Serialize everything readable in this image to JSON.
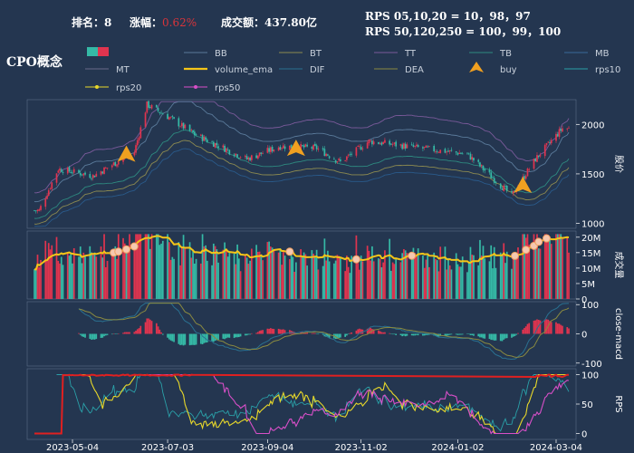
{
  "header": {
    "rank_label": "排名：",
    "rank_value": "8",
    "change_label": "涨幅：",
    "change_value": "0.62%",
    "turnover_label": "成交额：",
    "turnover_value": "437.80亿",
    "rps_line1": "RPS 05,10,20 = 10，98，97",
    "rps_line2": "RPS 50,120,250 = 100，99，100",
    "concept_title": "CPO概念"
  },
  "colors": {
    "background": "#243650",
    "up": "#e0344f",
    "down": "#35b9a6",
    "volume_ema": "#f5c518",
    "rps20": "#e8d82a",
    "rps50": "#d84fc8",
    "rps10": "#2aa0a8",
    "buy": "#f0a020"
  },
  "legend": {
    "row1": [
      "BB",
      "BT",
      "TT",
      "TB",
      "MB"
    ],
    "row2": [
      "MT",
      "volume_ema",
      "DIF",
      "DEA",
      "buy",
      "rps10"
    ],
    "row3": [
      "rps20",
      "rps50"
    ]
  },
  "chart_data": [
    {
      "panel": "price",
      "type": "candlestick",
      "ylabel": "股价",
      "yticks": [
        1000,
        1500,
        2000
      ],
      "ylim": [
        950,
        2250
      ],
      "key_points": [
        {
          "date": "2023-04-13",
          "value": 1130
        },
        {
          "date": "2023-04-25",
          "value": 1550
        },
        {
          "date": "2023-05-17",
          "value": 1480
        },
        {
          "date": "2023-06-12",
          "value": 1720
        },
        {
          "date": "2023-06-20",
          "value": 2200
        },
        {
          "date": "2023-07-03",
          "value": 2080
        },
        {
          "date": "2023-07-20",
          "value": 1900
        },
        {
          "date": "2023-08-22",
          "value": 1650
        },
        {
          "date": "2023-09-12",
          "value": 1780
        },
        {
          "date": "2023-10-05",
          "value": 1760
        },
        {
          "date": "2023-10-20",
          "value": 1620
        },
        {
          "date": "2023-11-07",
          "value": 1830
        },
        {
          "date": "2023-12-05",
          "value": 1770
        },
        {
          "date": "2024-01-08",
          "value": 1700
        },
        {
          "date": "2024-02-05",
          "value": 1280
        },
        {
          "date": "2024-02-20",
          "value": 1650
        },
        {
          "date": "2024-03-08",
          "value": 1960
        }
      ],
      "buy_signals": [
        "2023-06-07",
        "2023-09-22",
        "2024-02-12"
      ]
    },
    {
      "panel": "volume",
      "type": "bar",
      "ylabel": "成交量",
      "yticks": [
        "0",
        "5M",
        "10M",
        "15M",
        "20M"
      ],
      "ylim": [
        0,
        22
      ]
    },
    {
      "panel": "macd",
      "type": "line",
      "ylabel": "close-macd",
      "yticks": [
        -100,
        0,
        100
      ],
      "ylim": [
        -110,
        110
      ]
    },
    {
      "panel": "rps",
      "type": "line",
      "ylabel": "RPS",
      "yticks": [
        0,
        50,
        100
      ],
      "ylim": [
        -10,
        110
      ]
    }
  ],
  "x_axis": {
    "ticks": [
      "2023-05-04",
      "2023-07-03",
      "2023-09-04",
      "2023-11-02",
      "2024-01-02",
      "2024-03-04"
    ]
  }
}
